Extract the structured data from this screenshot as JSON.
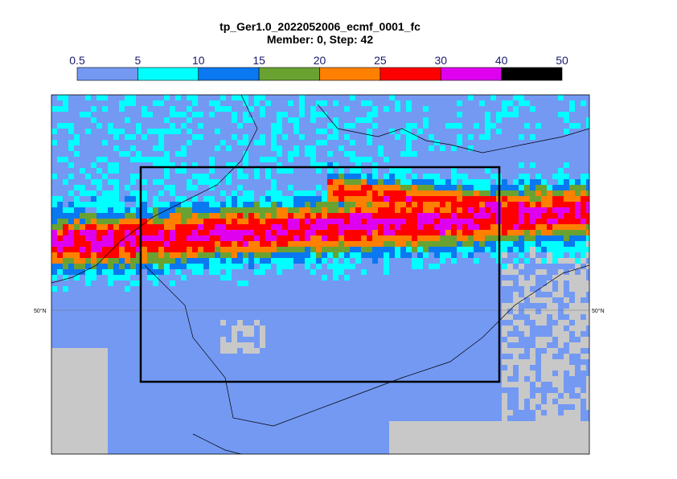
{
  "header": {
    "title": "tp_Ger1.0_2022052006_ecmf_0001_fc",
    "subtitle": "Member: 0, Step: 42"
  },
  "colorbar": {
    "ticks": [
      0.5,
      5,
      10,
      15,
      20,
      25,
      30,
      40,
      50
    ],
    "colors": [
      "#7399f3",
      "#00ffff",
      "#0a78f0",
      "#6aa232",
      "#ff8000",
      "#ff0000",
      "#e000f0",
      "#000000"
    ]
  },
  "map": {
    "lat_label_left": "50°N",
    "lat_label_right": "50°N"
  }
}
